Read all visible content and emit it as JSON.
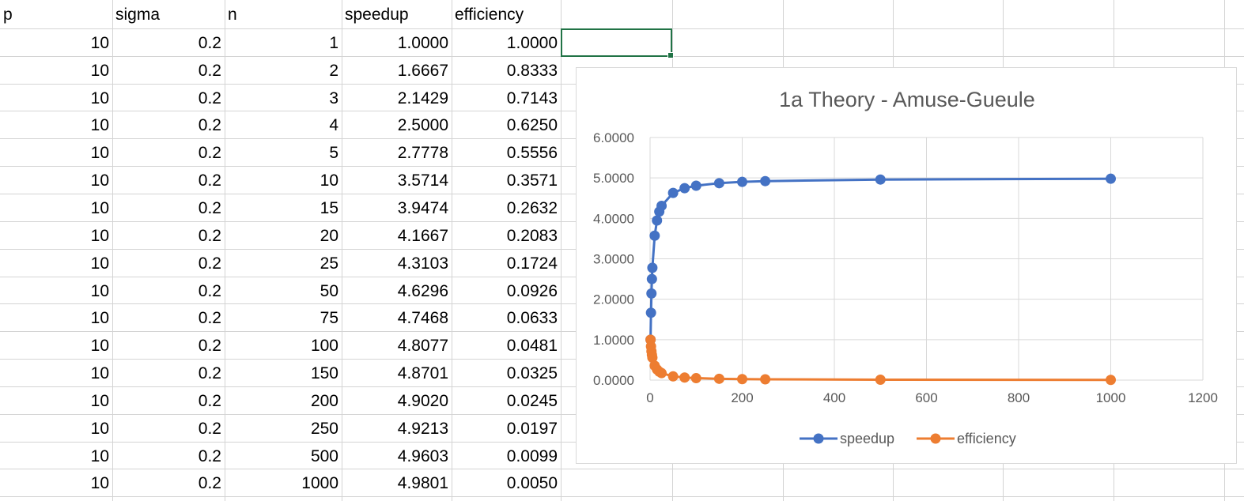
{
  "sheet": {
    "headers": [
      "p",
      "sigma",
      "n",
      "speedup",
      "efficiency"
    ],
    "rows": [
      [
        "10",
        "0.2",
        "1",
        "1.0000",
        "1.0000"
      ],
      [
        "10",
        "0.2",
        "2",
        "1.6667",
        "0.8333"
      ],
      [
        "10",
        "0.2",
        "3",
        "2.1429",
        "0.7143"
      ],
      [
        "10",
        "0.2",
        "4",
        "2.5000",
        "0.6250"
      ],
      [
        "10",
        "0.2",
        "5",
        "2.7778",
        "0.5556"
      ],
      [
        "10",
        "0.2",
        "10",
        "3.5714",
        "0.3571"
      ],
      [
        "10",
        "0.2",
        "15",
        "3.9474",
        "0.2632"
      ],
      [
        "10",
        "0.2",
        "20",
        "4.1667",
        "0.2083"
      ],
      [
        "10",
        "0.2",
        "25",
        "4.3103",
        "0.1724"
      ],
      [
        "10",
        "0.2",
        "50",
        "4.6296",
        "0.0926"
      ],
      [
        "10",
        "0.2",
        "75",
        "4.7468",
        "0.0633"
      ],
      [
        "10",
        "0.2",
        "100",
        "4.8077",
        "0.0481"
      ],
      [
        "10",
        "0.2",
        "150",
        "4.8701",
        "0.0325"
      ],
      [
        "10",
        "0.2",
        "200",
        "4.9020",
        "0.0245"
      ],
      [
        "10",
        "0.2",
        "250",
        "4.9213",
        "0.0197"
      ],
      [
        "10",
        "0.2",
        "500",
        "4.9603",
        "0.0099"
      ],
      [
        "10",
        "0.2",
        "1000",
        "4.9801",
        "0.0050"
      ]
    ],
    "selection_color": "#217346"
  },
  "chart_data": {
    "type": "scatter",
    "title": "1a Theory - Amuse-Gueule",
    "xlabel": "",
    "ylabel": "",
    "xlim": [
      0,
      1200
    ],
    "ylim": [
      0,
      6
    ],
    "x_ticks": [
      "0",
      "200",
      "400",
      "600",
      "800",
      "1000",
      "1200"
    ],
    "y_ticks": [
      "0.0000",
      "1.0000",
      "2.0000",
      "3.0000",
      "4.0000",
      "5.0000",
      "6.0000"
    ],
    "grid": true,
    "legend_position": "bottom",
    "x": [
      1,
      2,
      3,
      4,
      5,
      10,
      15,
      20,
      25,
      50,
      75,
      100,
      150,
      200,
      250,
      500,
      1000
    ],
    "series": [
      {
        "name": "speedup",
        "color": "#4472c4",
        "values": [
          1.0,
          1.6667,
          2.1429,
          2.5,
          2.7778,
          3.5714,
          3.9474,
          4.1667,
          4.3103,
          4.6296,
          4.7468,
          4.8077,
          4.8701,
          4.902,
          4.9213,
          4.9603,
          4.9801
        ]
      },
      {
        "name": "efficiency",
        "color": "#ed7d31",
        "values": [
          1.0,
          0.8333,
          0.7143,
          0.625,
          0.5556,
          0.3571,
          0.2632,
          0.2083,
          0.1724,
          0.0926,
          0.0633,
          0.0481,
          0.0325,
          0.0245,
          0.0197,
          0.0099,
          0.005
        ]
      }
    ]
  }
}
